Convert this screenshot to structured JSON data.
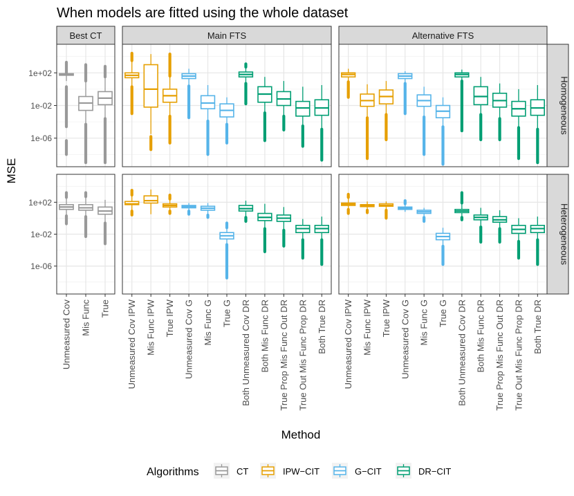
{
  "chart_data": {
    "type": "boxplot",
    "title": "When models are fitted using the whole dataset",
    "xlabel": "Method",
    "ylabel": "MSE",
    "y_scale": "log10",
    "ylim_log10": [
      -9.5,
      5.5
    ],
    "y_ticks": [
      {
        "label": "1e+02",
        "log10": 2
      },
      {
        "label": "1e-02",
        "log10": -2
      },
      {
        "label": "1e-06",
        "log10": -6
      }
    ],
    "column_facets": [
      {
        "label": "Best CT",
        "categories": [
          "Unmeasured Cov",
          "Mis Func",
          "True"
        ]
      },
      {
        "label": "Main FTS",
        "categories": [
          "Unmeasured Cov IPW",
          "Mis Func IPW",
          "True IPW",
          "Unmeasured Cov G",
          "Mis Func G",
          "True G",
          "Both Unmeasured Cov DR",
          "Both Mis Func DR",
          "True Prop Mis Func Out DR",
          "True Out Mis Func Prop DR",
          "Both True DR"
        ]
      },
      {
        "label": "Alternative FTS",
        "categories": [
          "Unmeasured Cov IPW",
          "Mis Func IPW",
          "True IPW",
          "Unmeasured Cov G",
          "Mis Func G",
          "True G",
          "Both Unmeasured Cov DR",
          "Both Mis Func DR",
          "True Prop Mis Func Out DR",
          "True Out Mis Func Prop DR",
          "Both True DR"
        ]
      }
    ],
    "row_facets": [
      "Homogeneous",
      "Heterogeneous"
    ],
    "legend": {
      "title": "Algorithms",
      "position": "bottom",
      "items": [
        {
          "label": "CT",
          "color": "#999999"
        },
        {
          "label": "IPW−CIT",
          "color": "#E69F00"
        },
        {
          "label": "G−CIT",
          "color": "#56B4E9"
        },
        {
          "label": "DR−CIT",
          "color": "#009E73"
        }
      ]
    },
    "boxes": [
      [
        [
          {
            "alg": 0,
            "q1": 1.7,
            "med": 1.8,
            "q3": 1.9,
            "lo": 1.0,
            "hi": 3.0,
            "out": [
              [
                -4.6,
                0.3
              ],
              [
                -8.0,
                -6.3
              ],
              [
                2.0,
                3.3
              ]
            ]
          },
          {
            "alg": 0,
            "q1": -2.6,
            "med": -1.7,
            "q3": -0.9,
            "lo": -4.2,
            "hi": 0.9,
            "out": [
              [
                -9.0,
                -4.3
              ],
              [
                1.0,
                3.0
              ]
            ]
          },
          {
            "alg": 0,
            "q1": -1.9,
            "med": -1.1,
            "q3": -0.3,
            "lo": -3.5,
            "hi": 1.4,
            "out": [
              [
                -9.0,
                -3.6
              ],
              [
                1.5,
                2.8
              ]
            ]
          }
        ],
        [
          {
            "alg": 1,
            "q1": 1.4,
            "med": 1.7,
            "q3": 2.0,
            "lo": 0.4,
            "hi": 3.4,
            "out": [
              [
                -3.0,
                0.3
              ],
              [
                3.5,
                4.4
              ]
            ]
          },
          {
            "alg": 1,
            "q1": -2.2,
            "med": 0.0,
            "q3": 3.0,
            "lo": -5.5,
            "hi": 4.3,
            "out": [
              [
                -7.4,
                -5.8
              ]
            ]
          },
          {
            "alg": 1,
            "q1": -1.6,
            "med": -0.8,
            "q3": 0.0,
            "lo": -3.2,
            "hi": 1.5,
            "out": [
              [
                -6.6,
                -3.3
              ],
              [
                1.6,
                4.3
              ]
            ]
          },
          {
            "alg": 2,
            "q1": 1.3,
            "med": 1.6,
            "q3": 1.9,
            "lo": 0.5,
            "hi": 2.5,
            "out": [
              [
                -3.5,
                0.4
              ]
            ]
          },
          {
            "alg": 2,
            "q1": -2.4,
            "med": -1.7,
            "q3": -0.8,
            "lo": -3.8,
            "hi": 0.5,
            "out": [
              [
                -8.0,
                -3.9
              ]
            ]
          },
          {
            "alg": 2,
            "q1": -3.4,
            "med": -2.6,
            "q3": -1.8,
            "lo": -4.2,
            "hi": -1.0,
            "out": [
              [
                -6.6,
                -4.3
              ]
            ]
          },
          {
            "alg": 3,
            "q1": 1.5,
            "med": 1.8,
            "q3": 2.1,
            "lo": 0.8,
            "hi": 2.6,
            "out": [
              [
                -1.8,
                0.7
              ],
              [
                2.7,
                3.1
              ]
            ]
          },
          {
            "alg": 3,
            "q1": -1.6,
            "med": -0.6,
            "q3": 0.3,
            "lo": -2.8,
            "hi": 1.5,
            "out": [
              [
                -6.3,
                -2.9
              ]
            ]
          },
          {
            "alg": 3,
            "q1": -2.0,
            "med": -1.2,
            "q3": -0.3,
            "lo": -3.2,
            "hi": 1.0,
            "out": [
              [
                -5.0,
                -3.3
              ]
            ]
          },
          {
            "alg": 3,
            "q1": -3.3,
            "med": -2.3,
            "q3": -1.5,
            "lo": -4.4,
            "hi": 0.3,
            "out": [
              [
                -7.0,
                -4.5
              ]
            ]
          },
          {
            "alg": 3,
            "q1": -3.2,
            "med": -2.3,
            "q3": -1.3,
            "lo": -4.8,
            "hi": 0.5,
            "out": [
              [
                -8.7,
                -4.9
              ]
            ]
          }
        ],
        [
          {
            "alg": 1,
            "q1": 1.5,
            "med": 1.8,
            "q3": 2.0,
            "lo": 1.0,
            "hi": 2.5,
            "out": [
              [
                -1.0,
                0.9
              ]
            ]
          },
          {
            "alg": 1,
            "q1": -2.1,
            "med": -1.4,
            "q3": -0.6,
            "lo": -3.4,
            "hi": 0.6,
            "out": [
              [
                -8.5,
                -3.5
              ]
            ]
          },
          {
            "alg": 1,
            "q1": -1.8,
            "med": -0.9,
            "q3": -0.1,
            "lo": -3.0,
            "hi": 1.0,
            "out": [
              [
                -6.2,
                -3.1
              ]
            ]
          },
          {
            "alg": 2,
            "q1": 1.3,
            "med": 1.6,
            "q3": 1.9,
            "lo": 0.8,
            "hi": 2.2,
            "out": [
              [
                -3.0,
                0.7
              ]
            ]
          },
          {
            "alg": 2,
            "q1": -2.1,
            "med": -1.4,
            "q3": -0.7,
            "lo": -3.3,
            "hi": 0.3,
            "out": [
              [
                -8.0,
                -3.4
              ]
            ]
          },
          {
            "alg": 2,
            "q1": -3.5,
            "med": -2.7,
            "q3": -2.0,
            "lo": -4.5,
            "hi": -1.0,
            "out": [
              [
                -9.2,
                -4.6
              ]
            ]
          },
          {
            "alg": 3,
            "q1": 1.5,
            "med": 1.8,
            "q3": 2.0,
            "lo": 1.1,
            "hi": 2.4,
            "out": [
              [
                -5.1,
                1.0
              ]
            ]
          },
          {
            "alg": 3,
            "q1": -1.9,
            "med": -0.9,
            "q3": 0.3,
            "lo": -3.0,
            "hi": 1.5,
            "out": [
              [
                -6.2,
                -3.1
              ]
            ]
          },
          {
            "alg": 3,
            "q1": -2.2,
            "med": -1.4,
            "q3": -0.5,
            "lo": -3.5,
            "hi": 0.7,
            "out": [
              [
                -6.2,
                -3.6
              ]
            ]
          },
          {
            "alg": 3,
            "q1": -3.3,
            "med": -2.4,
            "q3": -1.5,
            "lo": -4.6,
            "hi": 0.0,
            "out": [
              [
                -8.5,
                -4.7
              ]
            ]
          },
          {
            "alg": 3,
            "q1": -3.2,
            "med": -2.3,
            "q3": -1.3,
            "lo": -4.8,
            "hi": 0.5,
            "out": [
              [
                -9.0,
                -4.9
              ]
            ]
          }
        ]
      ],
      [
        [
          {
            "alg": 0,
            "q1": 1.1,
            "med": 1.4,
            "q3": 1.7,
            "lo": 0.4,
            "hi": 2.5,
            "out": [
              [
                -0.7,
                0.3
              ],
              [
                2.6,
                3.2
              ]
            ]
          },
          {
            "alg": 0,
            "q1": 1.0,
            "med": 1.3,
            "q3": 1.7,
            "lo": 0.3,
            "hi": 2.6,
            "out": [
              [
                -2.3,
                0.2
              ],
              [
                2.7,
                3.2
              ]
            ]
          },
          {
            "alg": 0,
            "q1": 0.5,
            "med": 0.9,
            "q3": 1.4,
            "lo": -0.5,
            "hi": 2.3,
            "out": [
              [
                -3.2,
                -0.6
              ]
            ]
          }
        ],
        [
          {
            "alg": 1,
            "q1": 1.7,
            "med": 1.8,
            "q3": 2.1,
            "lo": 1.0,
            "hi": 2.8,
            "out": [
              [
                0.4,
                0.9
              ],
              [
                2.9,
                3.5
              ]
            ]
          },
          {
            "alg": 1,
            "q1": 1.9,
            "med": 2.2,
            "q3": 2.8,
            "lo": 0.5,
            "hi": 3.6,
            "out": []
          },
          {
            "alg": 1,
            "q1": 1.4,
            "med": 1.6,
            "q3": 1.8,
            "lo": 1.0,
            "hi": 2.3,
            "out": [
              [
                0.6,
                0.9
              ],
              [
                2.4,
                2.9
              ]
            ]
          },
          {
            "alg": 2,
            "q1": 1.3,
            "med": 1.45,
            "q3": 1.6,
            "lo": 1.0,
            "hi": 1.9,
            "out": [
              [
                0.5,
                0.9
              ]
            ]
          },
          {
            "alg": 2,
            "q1": 1.0,
            "med": 1.25,
            "q3": 1.5,
            "lo": 0.5,
            "hi": 1.9,
            "out": [
              [
                0.1,
                0.4
              ]
            ]
          },
          {
            "alg": 2,
            "q1": -2.6,
            "med": -2.2,
            "q3": -1.8,
            "lo": -3.2,
            "hi": -1.3,
            "out": [
              [
                -7.5,
                -3.3
              ],
              [
                -1.2,
                -0.6
              ]
            ]
          },
          {
            "alg": 3,
            "q1": 0.9,
            "med": 1.2,
            "q3": 1.6,
            "lo": 0.2,
            "hi": 2.2,
            "out": [
              [
                -0.4,
                0.1
              ]
            ]
          },
          {
            "alg": 3,
            "q1": -0.3,
            "med": 0.1,
            "q3": 0.6,
            "lo": -1.2,
            "hi": 1.8,
            "out": [
              [
                -4.2,
                -1.3
              ]
            ]
          },
          {
            "alg": 3,
            "q1": -0.4,
            "med": 0.0,
            "q3": 0.4,
            "lo": -1.4,
            "hi": 1.4,
            "out": [
              [
                -3.5,
                -1.5
              ]
            ]
          },
          {
            "alg": 3,
            "q1": -1.8,
            "med": -1.3,
            "q3": -0.9,
            "lo": -2.6,
            "hi": -0.1,
            "out": [
              [
                -5.0,
                -2.7
              ]
            ]
          },
          {
            "alg": 3,
            "q1": -1.8,
            "med": -1.3,
            "q3": -0.9,
            "lo": -2.6,
            "hi": 0.2,
            "out": [
              [
                -5.8,
                -2.7
              ]
            ]
          }
        ],
        [
          {
            "alg": 1,
            "q1": 1.6,
            "med": 1.75,
            "q3": 1.9,
            "lo": 1.2,
            "hi": 2.5,
            "out": [
              [
                0.6,
                1.1
              ],
              [
                2.6,
                3.0
              ]
            ]
          },
          {
            "alg": 1,
            "q1": 1.45,
            "med": 1.55,
            "q3": 1.7,
            "lo": 1.1,
            "hi": 2.1,
            "out": [
              [
                0.7,
                1.0
              ]
            ]
          },
          {
            "alg": 1,
            "q1": 1.5,
            "med": 1.6,
            "q3": 1.8,
            "lo": 1.1,
            "hi": 2.1,
            "out": [
              [
                0.0,
                1.0
              ]
            ]
          },
          {
            "alg": 2,
            "q1": 1.1,
            "med": 1.25,
            "q3": 1.4,
            "lo": 0.8,
            "hi": 1.7,
            "out": [
              [
                1.8,
                2.2
              ]
            ]
          },
          {
            "alg": 2,
            "q1": 0.6,
            "med": 0.8,
            "q3": 1.0,
            "lo": 0.2,
            "hi": 1.3,
            "out": [
              [
                -0.4,
                0.1
              ]
            ]
          },
          {
            "alg": 2,
            "q1": -2.7,
            "med": -2.3,
            "q3": -1.9,
            "lo": -3.4,
            "hi": -1.2,
            "out": [
              [
                -5.8,
                -3.5
              ]
            ]
          },
          {
            "alg": 3,
            "q1": 0.7,
            "med": 0.9,
            "q3": 1.1,
            "lo": 0.2,
            "hi": 1.8,
            "out": [
              [
                -0.2,
                0.1
              ],
              [
                1.9,
                3.2
              ]
            ]
          },
          {
            "alg": 3,
            "q1": -0.2,
            "med": 0.1,
            "q3": 0.4,
            "lo": -1.0,
            "hi": 1.3,
            "out": [
              [
                -3.0,
                -1.1
              ]
            ]
          },
          {
            "alg": 3,
            "q1": -0.5,
            "med": -0.2,
            "q3": 0.2,
            "lo": -1.2,
            "hi": 1.0,
            "out": [
              [
                -3.0,
                -1.3
              ]
            ]
          },
          {
            "alg": 3,
            "q1": -1.9,
            "med": -1.4,
            "q3": -0.9,
            "lo": -2.8,
            "hi": 0.0,
            "out": [
              [
                -5.0,
                -2.9
              ]
            ]
          },
          {
            "alg": 3,
            "q1": -1.8,
            "med": -1.3,
            "q3": -0.9,
            "lo": -2.6,
            "hi": 0.2,
            "out": [
              [
                -5.8,
                -2.7
              ]
            ]
          }
        ]
      ]
    ]
  }
}
